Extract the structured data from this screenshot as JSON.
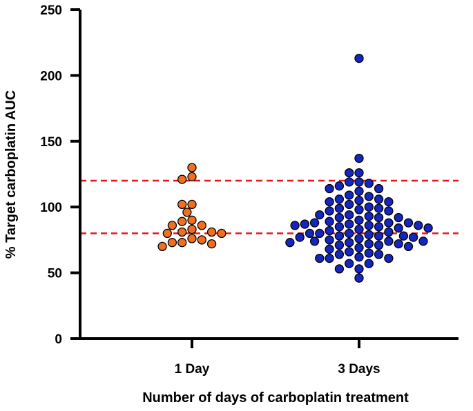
{
  "chart_data": {
    "type": "scatter",
    "subtype": "dot-plot",
    "title": "",
    "xlabel": "Number of days of carboplatin treatment",
    "ylabel": "% Target carboplatin AUC",
    "categories": [
      "1 Day",
      "3 Days"
    ],
    "ylim": [
      0,
      250
    ],
    "yticks": [
      "0",
      "50",
      "100",
      "150",
      "200",
      "250"
    ],
    "grid": false,
    "legend": "none",
    "reference_lines": [
      {
        "y": 120,
        "color": "#e8131b",
        "style": "dashed"
      },
      {
        "y": 80,
        "color": "#e8131b",
        "style": "dashed"
      }
    ],
    "series": [
      {
        "category": "1 Day",
        "color": "#f07020",
        "values": [
          130,
          121,
          123,
          102,
          96,
          102,
          83,
          89,
          90,
          86,
          86,
          80,
          81,
          81,
          76,
          80,
          75,
          72,
          73,
          73,
          70
        ]
      },
      {
        "category": "3 Days",
        "color": "#1426bf",
        "values": [
          213,
          137,
          126,
          126,
          119,
          116,
          118,
          119,
          112,
          114,
          114,
          109,
          108,
          104,
          104,
          106,
          106,
          105,
          102,
          99,
          100,
          98,
          99,
          97,
          97,
          94,
          93,
          92,
          92,
          94,
          92,
          88,
          89,
          90,
          88,
          88,
          87,
          87,
          85,
          86,
          85,
          86,
          84,
          86,
          83,
          84,
          80,
          82,
          80,
          81,
          80,
          79,
          78,
          78,
          78,
          77,
          77,
          76,
          75,
          74,
          74,
          73,
          74,
          73,
          71,
          71,
          72,
          72,
          70,
          69,
          68,
          66,
          64,
          65,
          64,
          62,
          61,
          61,
          61,
          57,
          57,
          53,
          53,
          46
        ]
      }
    ]
  }
}
